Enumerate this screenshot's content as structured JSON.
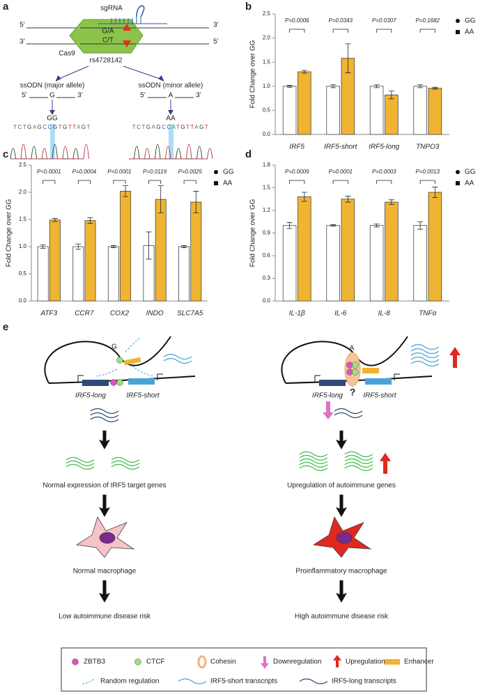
{
  "panel_labels": [
    "a",
    "b",
    "c",
    "d",
    "e"
  ],
  "panel_a": {
    "sgrna": "sgRNA",
    "top_strand_ends": [
      "5’",
      "3’"
    ],
    "bottom_strand_ends": [
      "3’",
      "5’"
    ],
    "allele_top": "G/A",
    "allele_bottom": "C/T",
    "cas9": "Cas9",
    "snp": "rs4728142",
    "ssodn": [
      "ssODN (major allele)",
      "ssODN (minor allele)"
    ],
    "oligo_ends": [
      "5’",
      "3’"
    ],
    "ssodn_base": [
      "G",
      "A"
    ],
    "genotype": [
      "GG",
      "AA"
    ],
    "sequence": [
      "TCTGAGCCGTGTTAGT",
      "TCTGAGCCATGTTAGT"
    ]
  },
  "chart_data": [
    {
      "type": "bar",
      "ylabel": "Fold Change over GG",
      "categories": [
        "IRF5",
        "IRF5-short",
        "IRF5-long",
        "TNPO3"
      ],
      "series": [
        {
          "name": "GG",
          "color": "#ffffff",
          "values": [
            1.0,
            1.0,
            1.0,
            1.0
          ],
          "errors": [
            0.02,
            0.03,
            0.03,
            0.03
          ]
        },
        {
          "name": "AA",
          "color": "#f0b432",
          "values": [
            1.3,
            1.58,
            0.82,
            0.96
          ],
          "errors": [
            0.03,
            0.3,
            0.08,
            0.02
          ]
        }
      ],
      "annotations": [
        "P=0.0006",
        "P=0.0343",
        "P=0.0307",
        "P=0.1682"
      ],
      "ylim": [
        0,
        2.5
      ],
      "yticks": [
        {
          "value": 0,
          "label": "0.0"
        },
        0.5,
        {
          "value": 1,
          "label": "1.0"
        },
        1.5,
        {
          "value": 2,
          "label": "2.0"
        },
        2.5
      ],
      "legend": "upper right"
    },
    {
      "type": "bar",
      "ylabel": "Fold Change over GG",
      "categories": [
        "ATF3",
        "CCR7",
        "COX2",
        "INDO",
        "SLC7A5"
      ],
      "series": [
        {
          "name": "GG",
          "color": "#ffffff",
          "values": [
            1.0,
            1.0,
            1.0,
            1.02,
            1.0
          ],
          "errors": [
            0.03,
            0.05,
            0.02,
            0.25,
            0.02
          ]
        },
        {
          "name": "AA",
          "color": "#f0b432",
          "values": [
            1.49,
            1.48,
            2.02,
            1.87,
            1.82
          ],
          "errors": [
            0.03,
            0.05,
            0.1,
            0.25,
            0.2
          ]
        }
      ],
      "annotations": [
        "P<0.0001",
        "P=0.0004",
        "P<0.0001",
        "P=0.0119",
        "P=0.0025"
      ],
      "ylim": [
        0,
        2.5
      ],
      "yticks": [
        {
          "value": 0,
          "label": "0.0"
        },
        0.5,
        {
          "value": 1,
          "label": "1.0"
        },
        1.5,
        {
          "value": 2,
          "label": "2.0"
        },
        2.5
      ],
      "legend": "upper right"
    },
    {
      "type": "bar",
      "ylabel": "Fold Change over GG",
      "categories": [
        "IL-1β",
        "IL-6",
        "IL-8",
        "TNFα"
      ],
      "series": [
        {
          "name": "GG",
          "color": "#ffffff",
          "values": [
            1.0,
            1.0,
            1.0,
            1.0
          ],
          "errors": [
            0.04,
            0.01,
            0.02,
            0.05
          ]
        },
        {
          "name": "AA",
          "color": "#f0b432",
          "values": [
            1.38,
            1.35,
            1.31,
            1.44
          ],
          "errors": [
            0.06,
            0.04,
            0.03,
            0.07
          ]
        }
      ],
      "annotations": [
        "P=0.0009",
        "P=0.0001",
        "P=0.0003",
        "P=0.0013"
      ],
      "ylim": [
        0,
        1.8
      ],
      "yticks": [
        {
          "value": 0,
          "label": "0.0"
        },
        0.3,
        0.6,
        0.9,
        1.2,
        1.5,
        1.8
      ],
      "legend": "upper right"
    }
  ],
  "panel_e": {
    "left": {
      "allele": "G",
      "genes": [
        "IRF5-long",
        "IRF5-short"
      ],
      "outcome": "Normal expression of IRF5 target genes",
      "cell": "Normal macrophage",
      "risk": "Low autoimmune disease risk"
    },
    "right": {
      "allele": "A",
      "question": "?",
      "genes": [
        "IRF5-long",
        "IRF5-short"
      ],
      "outcome": "Upregulation of autoimmune genes",
      "cell": "Proinflammatory macrophage",
      "risk": "High autoimmune disease risk"
    },
    "legend": [
      "ZBTB3",
      "CTCF",
      "Cohesin",
      "Downregulation",
      "Upregulation",
      "Enhancer",
      "Random regulation",
      "IRF5-short transcripts",
      "IRF5-long transcripts"
    ]
  }
}
